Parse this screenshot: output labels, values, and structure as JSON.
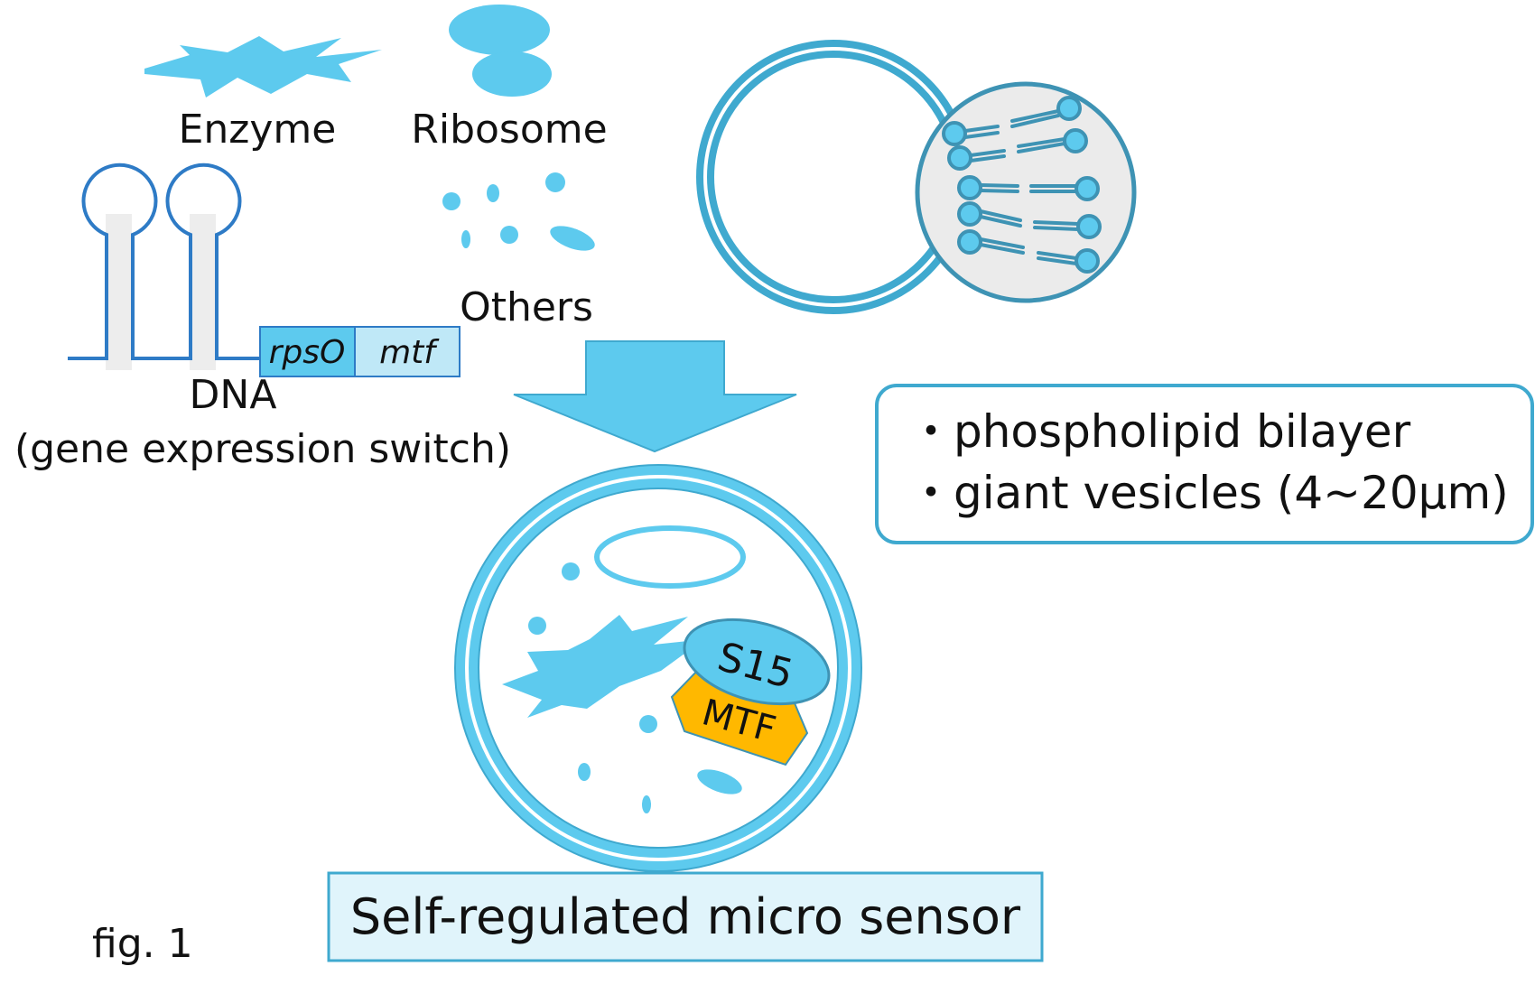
{
  "labels": {
    "enzyme": "Enzyme",
    "ribosome": "Ribosome",
    "others": "Others",
    "dna": "DNA",
    "dna_sub": "(gene expression switch)",
    "gene_rpso": "rpsO",
    "gene_mtf": "mtf",
    "protein_s15": "S15",
    "protein_mtf": "MTF",
    "bullet_1": "・phospholipid bilayer",
    "bullet_2": "・giant vesicles (4~20µm)",
    "caption": "Self-regulated micro sensor",
    "fig_label": "fig. 1"
  },
  "colors": {
    "cyan": "#5DCAEE",
    "cyan_light": "#BFE8F7",
    "cyan_pale": "#E0F4FB",
    "dna_blue": "#2E7BC6",
    "membrane_edge": "#3FA9CF",
    "lipid_teal": "#3E93B4",
    "orange": "#FFB800",
    "gray_panel": "#EBEBEB"
  }
}
